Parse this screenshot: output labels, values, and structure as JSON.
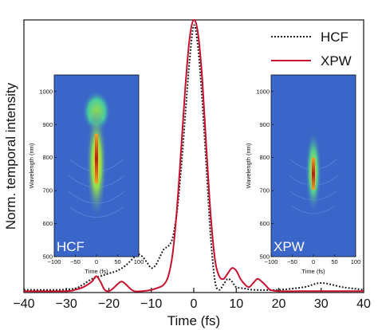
{
  "chart_data": {
    "type": "line",
    "xlabel": "Time (fs)",
    "ylabel": "Norm. temporal intensity",
    "xlim": [
      -40,
      40
    ],
    "ylim": [
      0,
      1
    ],
    "xticks": [
      -40,
      -30,
      -20,
      -10,
      0,
      10,
      20,
      30,
      40
    ],
    "grid": false,
    "legend_position": "top-right",
    "series": [
      {
        "name": "HCF",
        "style": "dotted",
        "color": "#111111",
        "x": [
          -40,
          -32,
          -28,
          -26,
          -24,
          -22,
          -20,
          -18,
          -16,
          -14,
          -13,
          -12,
          -11,
          -10,
          -9,
          -8,
          -7,
          -6,
          -5,
          -4,
          -3,
          -2,
          -1,
          0,
          1,
          2,
          3,
          4,
          5,
          6,
          7,
          8,
          9,
          10,
          12,
          14,
          20,
          26,
          30,
          35,
          40
        ],
        "y": [
          0.01,
          0.01,
          0.015,
          0.03,
          0.05,
          0.06,
          0.07,
          0.08,
          0.1,
          0.13,
          0.14,
          0.13,
          0.11,
          0.09,
          0.1,
          0.13,
          0.16,
          0.17,
          0.2,
          0.29,
          0.45,
          0.65,
          0.85,
          0.98,
          0.9,
          0.7,
          0.45,
          0.2,
          0.04,
          0.01,
          0.03,
          0.05,
          0.04,
          0.02,
          0.015,
          0.01,
          0.01,
          0.02,
          0.035,
          0.02,
          0.01
        ]
      },
      {
        "name": "XPW",
        "style": "solid",
        "color": "#c8102e",
        "x": [
          -40,
          -30,
          -28,
          -26,
          -24,
          -23,
          -22,
          -21,
          -20,
          -19,
          -18,
          -17,
          -16,
          -15,
          -14,
          -12,
          -10,
          -8,
          -7,
          -6,
          -5,
          -4,
          -3,
          -2,
          -1,
          0,
          1,
          2,
          3,
          4,
          5,
          6,
          7,
          8,
          9,
          10,
          11,
          12,
          13,
          14,
          15,
          16,
          17,
          18,
          20,
          25,
          30,
          35,
          40
        ],
        "y": [
          0.005,
          0.005,
          0.01,
          0.02,
          0.04,
          0.06,
          0.04,
          0.01,
          0.005,
          0.015,
          0.03,
          0.04,
          0.03,
          0.015,
          0.005,
          0.005,
          0.01,
          0.02,
          0.03,
          0.06,
          0.14,
          0.3,
          0.52,
          0.75,
          0.93,
          1.0,
          0.95,
          0.78,
          0.52,
          0.28,
          0.12,
          0.06,
          0.05,
          0.07,
          0.09,
          0.08,
          0.05,
          0.03,
          0.02,
          0.035,
          0.05,
          0.04,
          0.025,
          0.01,
          0.005,
          0.005,
          0.005,
          0.005,
          0.005
        ]
      }
    ],
    "insets": [
      {
        "label": "HCF",
        "type": "heatmap",
        "xlabel": "Time (fs)",
        "ylabel": "Wavelength (nm)",
        "xlim": [
          -100,
          100
        ],
        "ylim": [
          500,
          1050
        ],
        "xticks": [
          -100,
          -50,
          0,
          50,
          100
        ],
        "yticks": [
          500,
          600,
          700,
          800,
          900,
          1000
        ]
      },
      {
        "label": "XPW",
        "type": "heatmap",
        "xlabel": "Time (fs)",
        "ylabel": "Wavelength (nm)",
        "xlim": [
          -100,
          100
        ],
        "ylim": [
          500,
          1050
        ],
        "xticks": [
          -100,
          -50,
          0,
          50,
          100
        ],
        "yticks": [
          500,
          600,
          700,
          800,
          900,
          1000
        ]
      }
    ]
  }
}
